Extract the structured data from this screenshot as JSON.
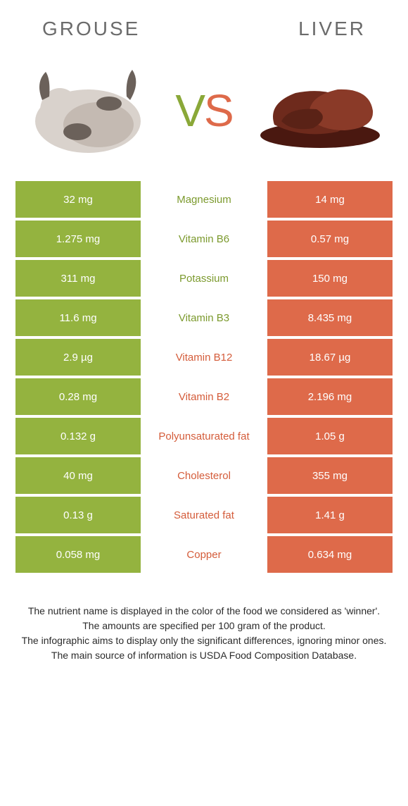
{
  "colors": {
    "green": "#94b33f",
    "orange": "#de6a4a",
    "mid_green_text": "#7c9a2e",
    "mid_orange_text": "#d45c3a"
  },
  "header": {
    "left": "GROUSE",
    "right": "LIVER"
  },
  "vs": {
    "v": "V",
    "s": "S"
  },
  "rows": [
    {
      "left": "32 mg",
      "mid": "Magnesium",
      "right": "14 mg",
      "winner": "left"
    },
    {
      "left": "1.275 mg",
      "mid": "Vitamin B6",
      "right": "0.57 mg",
      "winner": "left"
    },
    {
      "left": "311 mg",
      "mid": "Potassium",
      "right": "150 mg",
      "winner": "left"
    },
    {
      "left": "11.6 mg",
      "mid": "Vitamin B3",
      "right": "8.435 mg",
      "winner": "left"
    },
    {
      "left": "2.9 µg",
      "mid": "Vitamin B12",
      "right": "18.67 µg",
      "winner": "right"
    },
    {
      "left": "0.28 mg",
      "mid": "Vitamin B2",
      "right": "2.196 mg",
      "winner": "right"
    },
    {
      "left": "0.132 g",
      "mid": "Polyunsaturated fat",
      "right": "1.05 g",
      "winner": "right"
    },
    {
      "left": "40 mg",
      "mid": "Cholesterol",
      "right": "355 mg",
      "winner": "right"
    },
    {
      "left": "0.13 g",
      "mid": "Saturated fat",
      "right": "1.41 g",
      "winner": "right"
    },
    {
      "left": "0.058 mg",
      "mid": "Copper",
      "right": "0.634 mg",
      "winner": "right"
    }
  ],
  "footer": {
    "l1": "The nutrient name is displayed in the color of the food we considered as 'winner'.",
    "l2": "The amounts are specified per 100 gram of the product.",
    "l3": "The infographic aims to display only the significant differences, ignoring minor ones.",
    "l4": "The main source of information is USDA Food Composition Database."
  }
}
